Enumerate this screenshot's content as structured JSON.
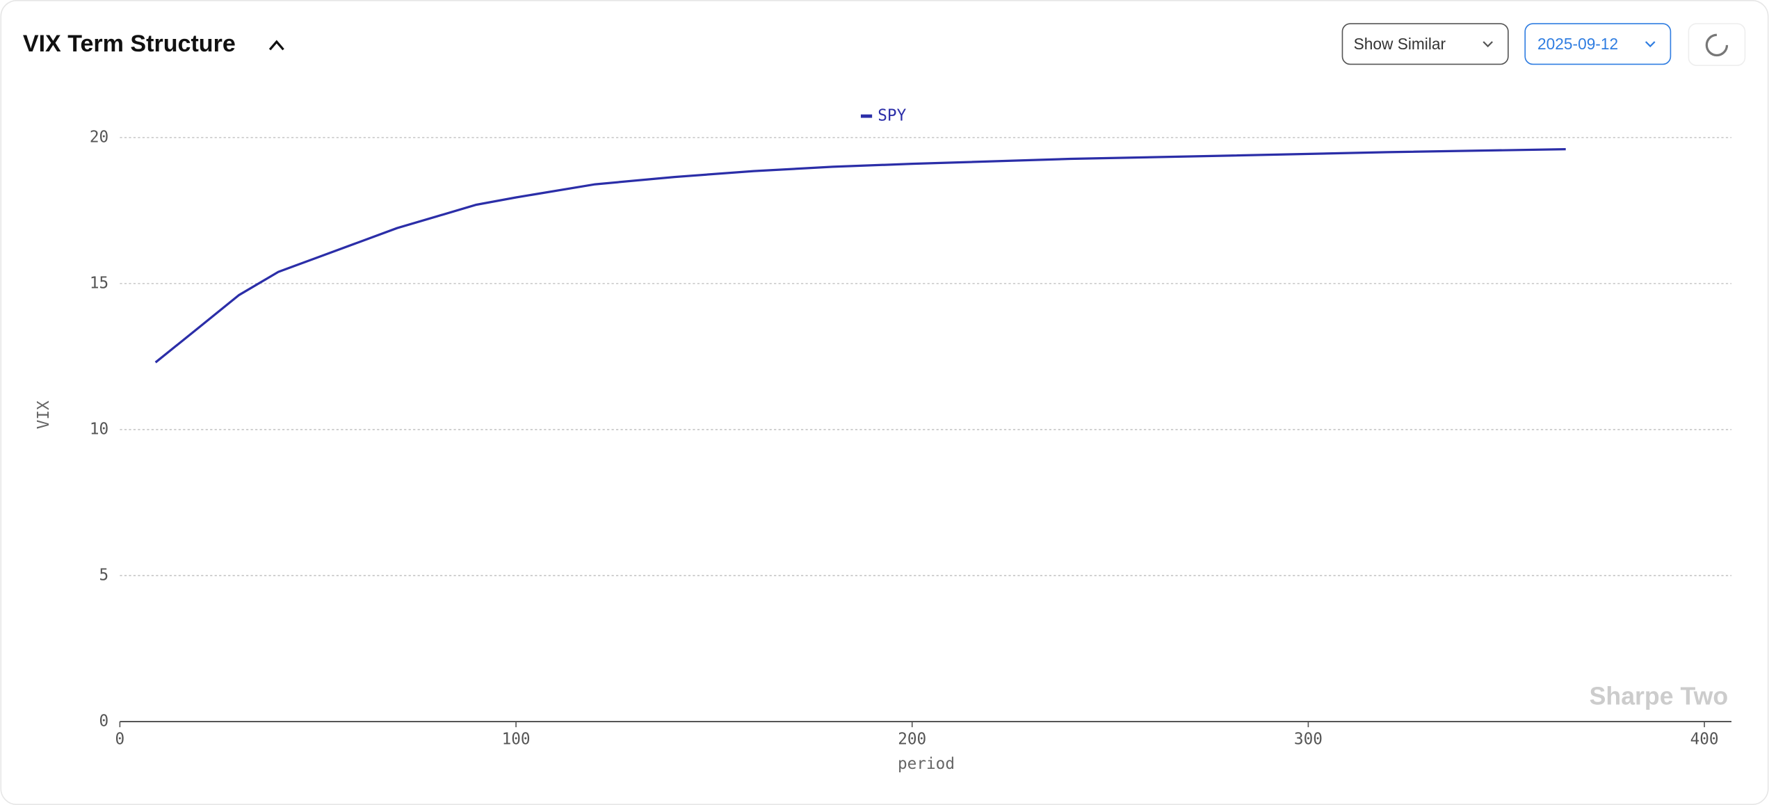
{
  "header": {
    "title": "VIX Term Structure",
    "similar_button": "Show Similar",
    "date_button": "2025-09-12"
  },
  "watermark": "Sharpe Two",
  "chart_data": {
    "type": "line",
    "x_label": "period",
    "y_label": "VIX",
    "x": [
      9,
      20,
      30,
      40,
      50,
      60,
      70,
      80,
      90,
      100,
      120,
      140,
      160,
      180,
      200,
      240,
      280,
      320,
      365
    ],
    "series": [
      {
        "name": "SPY",
        "color": "#2b2ea8",
        "values": [
          12.3,
          13.5,
          14.6,
          15.4,
          15.9,
          16.4,
          16.9,
          17.3,
          17.7,
          17.95,
          18.4,
          18.65,
          18.85,
          19.0,
          19.1,
          19.27,
          19.38,
          19.5,
          19.6
        ]
      }
    ],
    "xlim": [
      0,
      400
    ],
    "xticks": [
      0,
      100,
      200,
      300,
      400
    ],
    "ylim": [
      0,
      20
    ],
    "yticks": [
      0,
      5,
      10,
      15,
      20
    ],
    "grid": true,
    "legend": "top"
  }
}
